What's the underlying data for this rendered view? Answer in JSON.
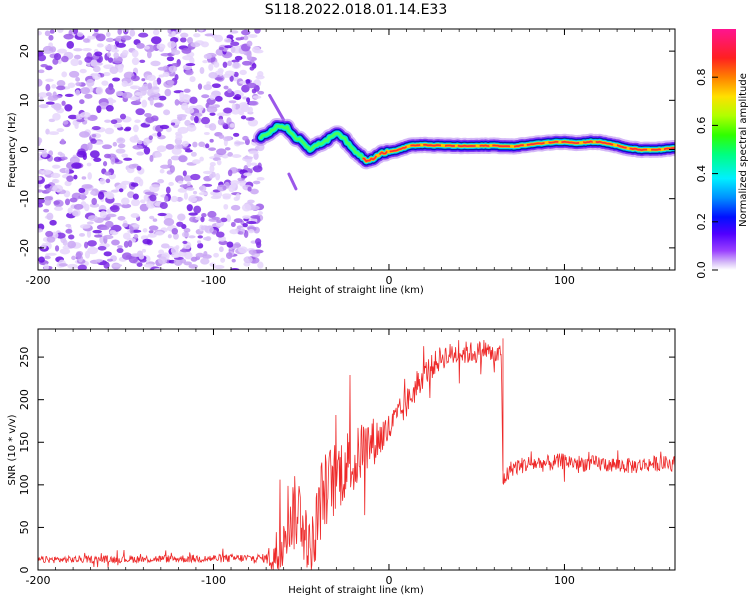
{
  "title": "S118.2022.018.01.14.E33",
  "chart_data": [
    {
      "type": "heatmap",
      "panel": "spectrogram",
      "xlabel": "Height of straight line (km)",
      "ylabel": "Frequency (Hz)",
      "xlim": [
        -200,
        163
      ],
      "ylim": [
        -24.5,
        24.5
      ],
      "xticks": [
        -200,
        -100,
        0,
        100
      ],
      "yticks": [
        -20,
        -10,
        0,
        10,
        20
      ],
      "colorbar": {
        "label": "Normalized spectral amplitude",
        "range": [
          0,
          1
        ],
        "ticks": [
          0.0,
          0.2,
          0.4,
          0.6,
          0.8
        ],
        "colors": [
          "#ffffff",
          "#c9a8f2",
          "#8b2be2",
          "#5a10ff",
          "#0020ff",
          "#0096ff",
          "#00f0ff",
          "#00e070",
          "#40e000",
          "#c8e800",
          "#ffd000",
          "#ff7a00",
          "#ff2020",
          "#ff1493"
        ]
      },
      "noise_region_x": [
        -200,
        -73
      ],
      "signal_trace": {
        "x": [
          -73,
          -68,
          -63,
          -58,
          -54,
          -50,
          -45,
          -40,
          -35,
          -30,
          -26,
          -22,
          -17,
          -13,
          -9,
          -5,
          0,
          6,
          12,
          20,
          30,
          45,
          60,
          70,
          80,
          90,
          100,
          108,
          115,
          120,
          128,
          135,
          145,
          155,
          163
        ],
        "y": [
          2.5,
          3.5,
          4.8,
          4.5,
          2.5,
          2.0,
          0.0,
          1.0,
          2.0,
          3.5,
          2.5,
          0.5,
          -1.0,
          -2.2,
          -1.8,
          -0.8,
          -0.5,
          0.0,
          0.8,
          0.9,
          0.8,
          0.7,
          0.8,
          0.6,
          1.0,
          1.4,
          1.6,
          1.3,
          1.6,
          1.5,
          1.0,
          0.3,
          -0.1,
          0.0,
          0.3
        ]
      },
      "spurs": [
        {
          "x": [
            -68,
            -60
          ],
          "y": [
            11,
            6
          ]
        },
        {
          "x": [
            -57,
            -53
          ],
          "y": [
            -5,
            -8
          ]
        }
      ]
    },
    {
      "type": "line",
      "panel": "snr",
      "xlabel": "Height of straight line (km)",
      "ylabel": "SNR (10 * v/v)",
      "xlim": [
        -200,
        163
      ],
      "ylim": [
        0,
        283
      ],
      "xticks": [
        -200,
        -100,
        0,
        100
      ],
      "yticks": [
        0,
        50,
        100,
        150,
        200,
        250
      ],
      "color": "#ee2a2a",
      "envelope": {
        "x": [
          -200,
          -70,
          -62,
          -60,
          -50,
          -45,
          -38,
          -30,
          -22,
          -20,
          -15,
          -10,
          -5,
          0,
          10,
          20,
          30,
          40,
          50,
          55,
          60,
          64,
          65,
          70,
          80,
          90,
          100,
          110,
          120,
          130,
          140,
          150,
          163
        ],
        "y": [
          12,
          14,
          18,
          60,
          70,
          10,
          90,
          110,
          130,
          120,
          145,
          150,
          155,
          165,
          195,
          230,
          250,
          255,
          255,
          260,
          250,
          255,
          105,
          120,
          125,
          125,
          128,
          125,
          125,
          123,
          122,
          125,
          125
        ]
      },
      "noise_amplitude": {
        "x": [
          -200,
          -70,
          -62,
          -45,
          -30,
          -15,
          0,
          20,
          40,
          64,
          65,
          163
        ],
        "y": [
          4,
          5,
          45,
          45,
          45,
          35,
          20,
          15,
          14,
          12,
          10,
          9
        ]
      },
      "step_drop_x": 65,
      "step_drop_y": [
        272,
        102
      ]
    }
  ]
}
